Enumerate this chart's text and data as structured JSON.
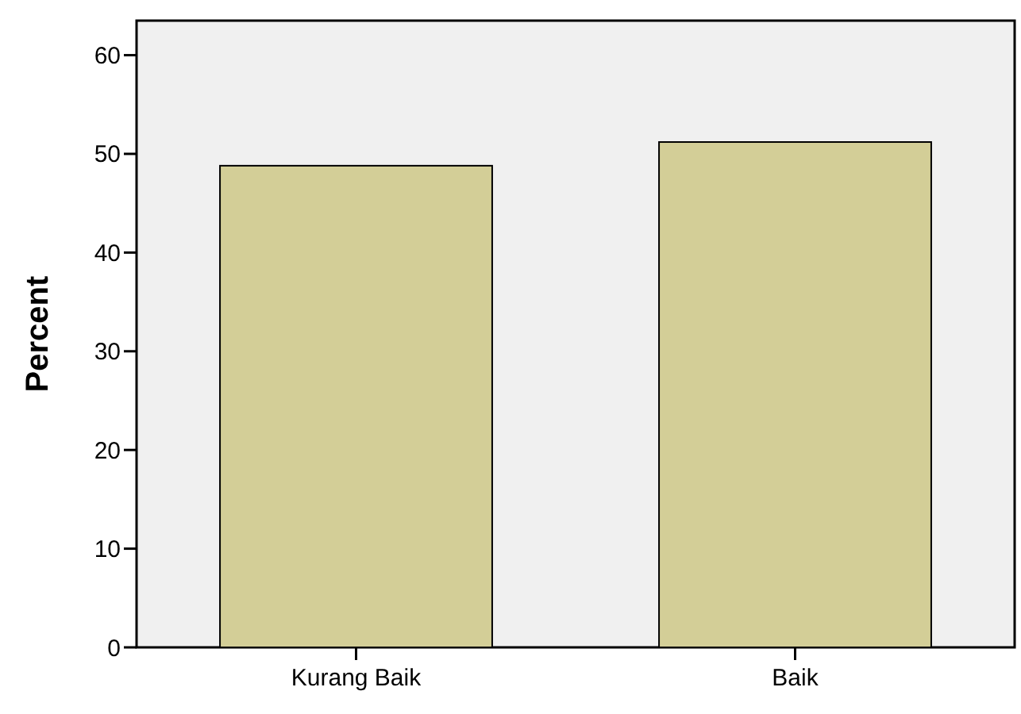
{
  "chart_data": {
    "type": "bar",
    "ylabel": "Percent",
    "categories": [
      "Kurang Baik",
      "Baik"
    ],
    "values": [
      48.8,
      51.2
    ],
    "color": "#d3ce97",
    "ylim": [
      0,
      63.5
    ],
    "yticks": [
      0,
      10,
      20,
      30,
      40,
      50,
      60
    ],
    "grid": false
  }
}
